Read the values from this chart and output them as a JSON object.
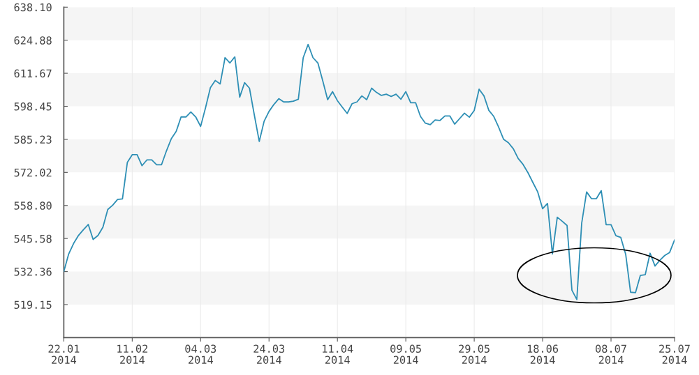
{
  "chart_data": {
    "type": "line",
    "categories": [
      "22.01\n2014",
      null,
      null,
      null,
      null,
      null,
      null,
      null,
      null,
      null,
      null,
      null,
      null,
      null,
      "11.02\n2014",
      null,
      null,
      null,
      null,
      null,
      null,
      null,
      null,
      null,
      null,
      null,
      null,
      null,
      "04.03\n2014",
      null,
      null,
      null,
      null,
      null,
      null,
      null,
      null,
      null,
      null,
      null,
      null,
      null,
      "24.03\n2014",
      null,
      null,
      null,
      null,
      null,
      null,
      null,
      null,
      null,
      null,
      null,
      null,
      null,
      "11.04\n2014",
      null,
      null,
      null,
      null,
      null,
      null,
      null,
      null,
      null,
      null,
      null,
      null,
      null,
      "09.05\n2014",
      null,
      null,
      null,
      null,
      null,
      null,
      null,
      null,
      null,
      null,
      null,
      null,
      null,
      "29.05\n2014",
      null,
      null,
      null,
      null,
      null,
      null,
      null,
      null,
      null,
      null,
      null,
      null,
      null,
      "18.06\n2014",
      null,
      null,
      null,
      null,
      null,
      null,
      null,
      null,
      null,
      null,
      null,
      null,
      null,
      "08.07\n2014",
      null,
      null,
      null,
      null,
      null,
      null,
      null,
      null,
      null,
      null,
      null,
      null,
      "25.07\n2014"
    ],
    "series": [
      {
        "color": "#2e8fb5",
        "values": [
          532.4,
          539.4,
          543.6,
          546.8,
          549.1,
          551.2,
          545.2,
          546.8,
          550.1,
          557.2,
          558.9,
          561.2,
          561.4,
          576.0,
          579.1,
          579.1,
          574.7,
          577.0,
          577.0,
          575.1,
          575.1,
          580.6,
          585.5,
          588.4,
          594.2,
          594.2,
          596.2,
          594.2,
          590.4,
          597.8,
          605.9,
          608.8,
          607.4,
          617.9,
          615.8,
          618.2,
          602.1,
          607.9,
          605.7,
          594.9,
          584.4,
          592.5,
          596.4,
          599.2,
          601.5,
          600.2,
          600.2,
          600.5,
          601.3,
          617.9,
          623.2,
          617.9,
          615.8,
          608.6,
          601.1,
          604.3,
          600.7,
          598.1,
          595.6,
          599.5,
          600.2,
          602.6,
          601.1,
          605.7,
          604.0,
          602.8,
          603.3,
          602.4,
          603.3,
          601.3,
          604.3,
          599.9,
          599.9,
          594.4,
          591.7,
          591.1,
          593.0,
          592.8,
          594.6,
          594.6,
          591.3,
          593.5,
          595.7,
          594.1,
          596.8,
          605.3,
          602.6,
          596.8,
          594.4,
          590.1,
          585.3,
          583.9,
          581.5,
          577.6,
          575.2,
          571.9,
          568.0,
          564.2,
          557.5,
          559.6,
          539.4,
          554.1,
          552.5,
          550.8,
          524.9,
          521.2,
          551.7,
          564.2,
          561.5,
          561.5,
          564.7,
          551.1,
          551.1,
          546.7,
          546.0,
          539.3,
          524.1,
          523.9,
          530.8,
          531.1,
          539.7,
          534.6,
          536.9,
          538.8,
          540.0,
          545.0
        ]
      }
    ],
    "ylim": [
      505.93,
      638.1
    ],
    "yticks": [
      519.15,
      532.36,
      545.58,
      {
        "value": 558.8,
        "label": "558.80"
      },
      572.02,
      585.23,
      598.45,
      611.67,
      624.88,
      {
        "value": 638.1,
        "label": "638.10"
      }
    ],
    "bands": [
      {
        "axis": "y",
        "from": 624.88,
        "to": 638.1,
        "color": "#f5f5f5"
      },
      {
        "axis": "y",
        "from": 598.45,
        "to": 611.67,
        "color": "#f5f5f5"
      },
      {
        "axis": "y",
        "from": 572.02,
        "to": 585.23,
        "color": "#f5f5f5"
      },
      {
        "axis": "y",
        "from": 545.58,
        "to": 558.8,
        "color": "#f5f5f5"
      },
      {
        "axis": "y",
        "from": 519.15,
        "to": 532.36,
        "color": "#f5f5f5"
      }
    ],
    "grid": "x"
  }
}
